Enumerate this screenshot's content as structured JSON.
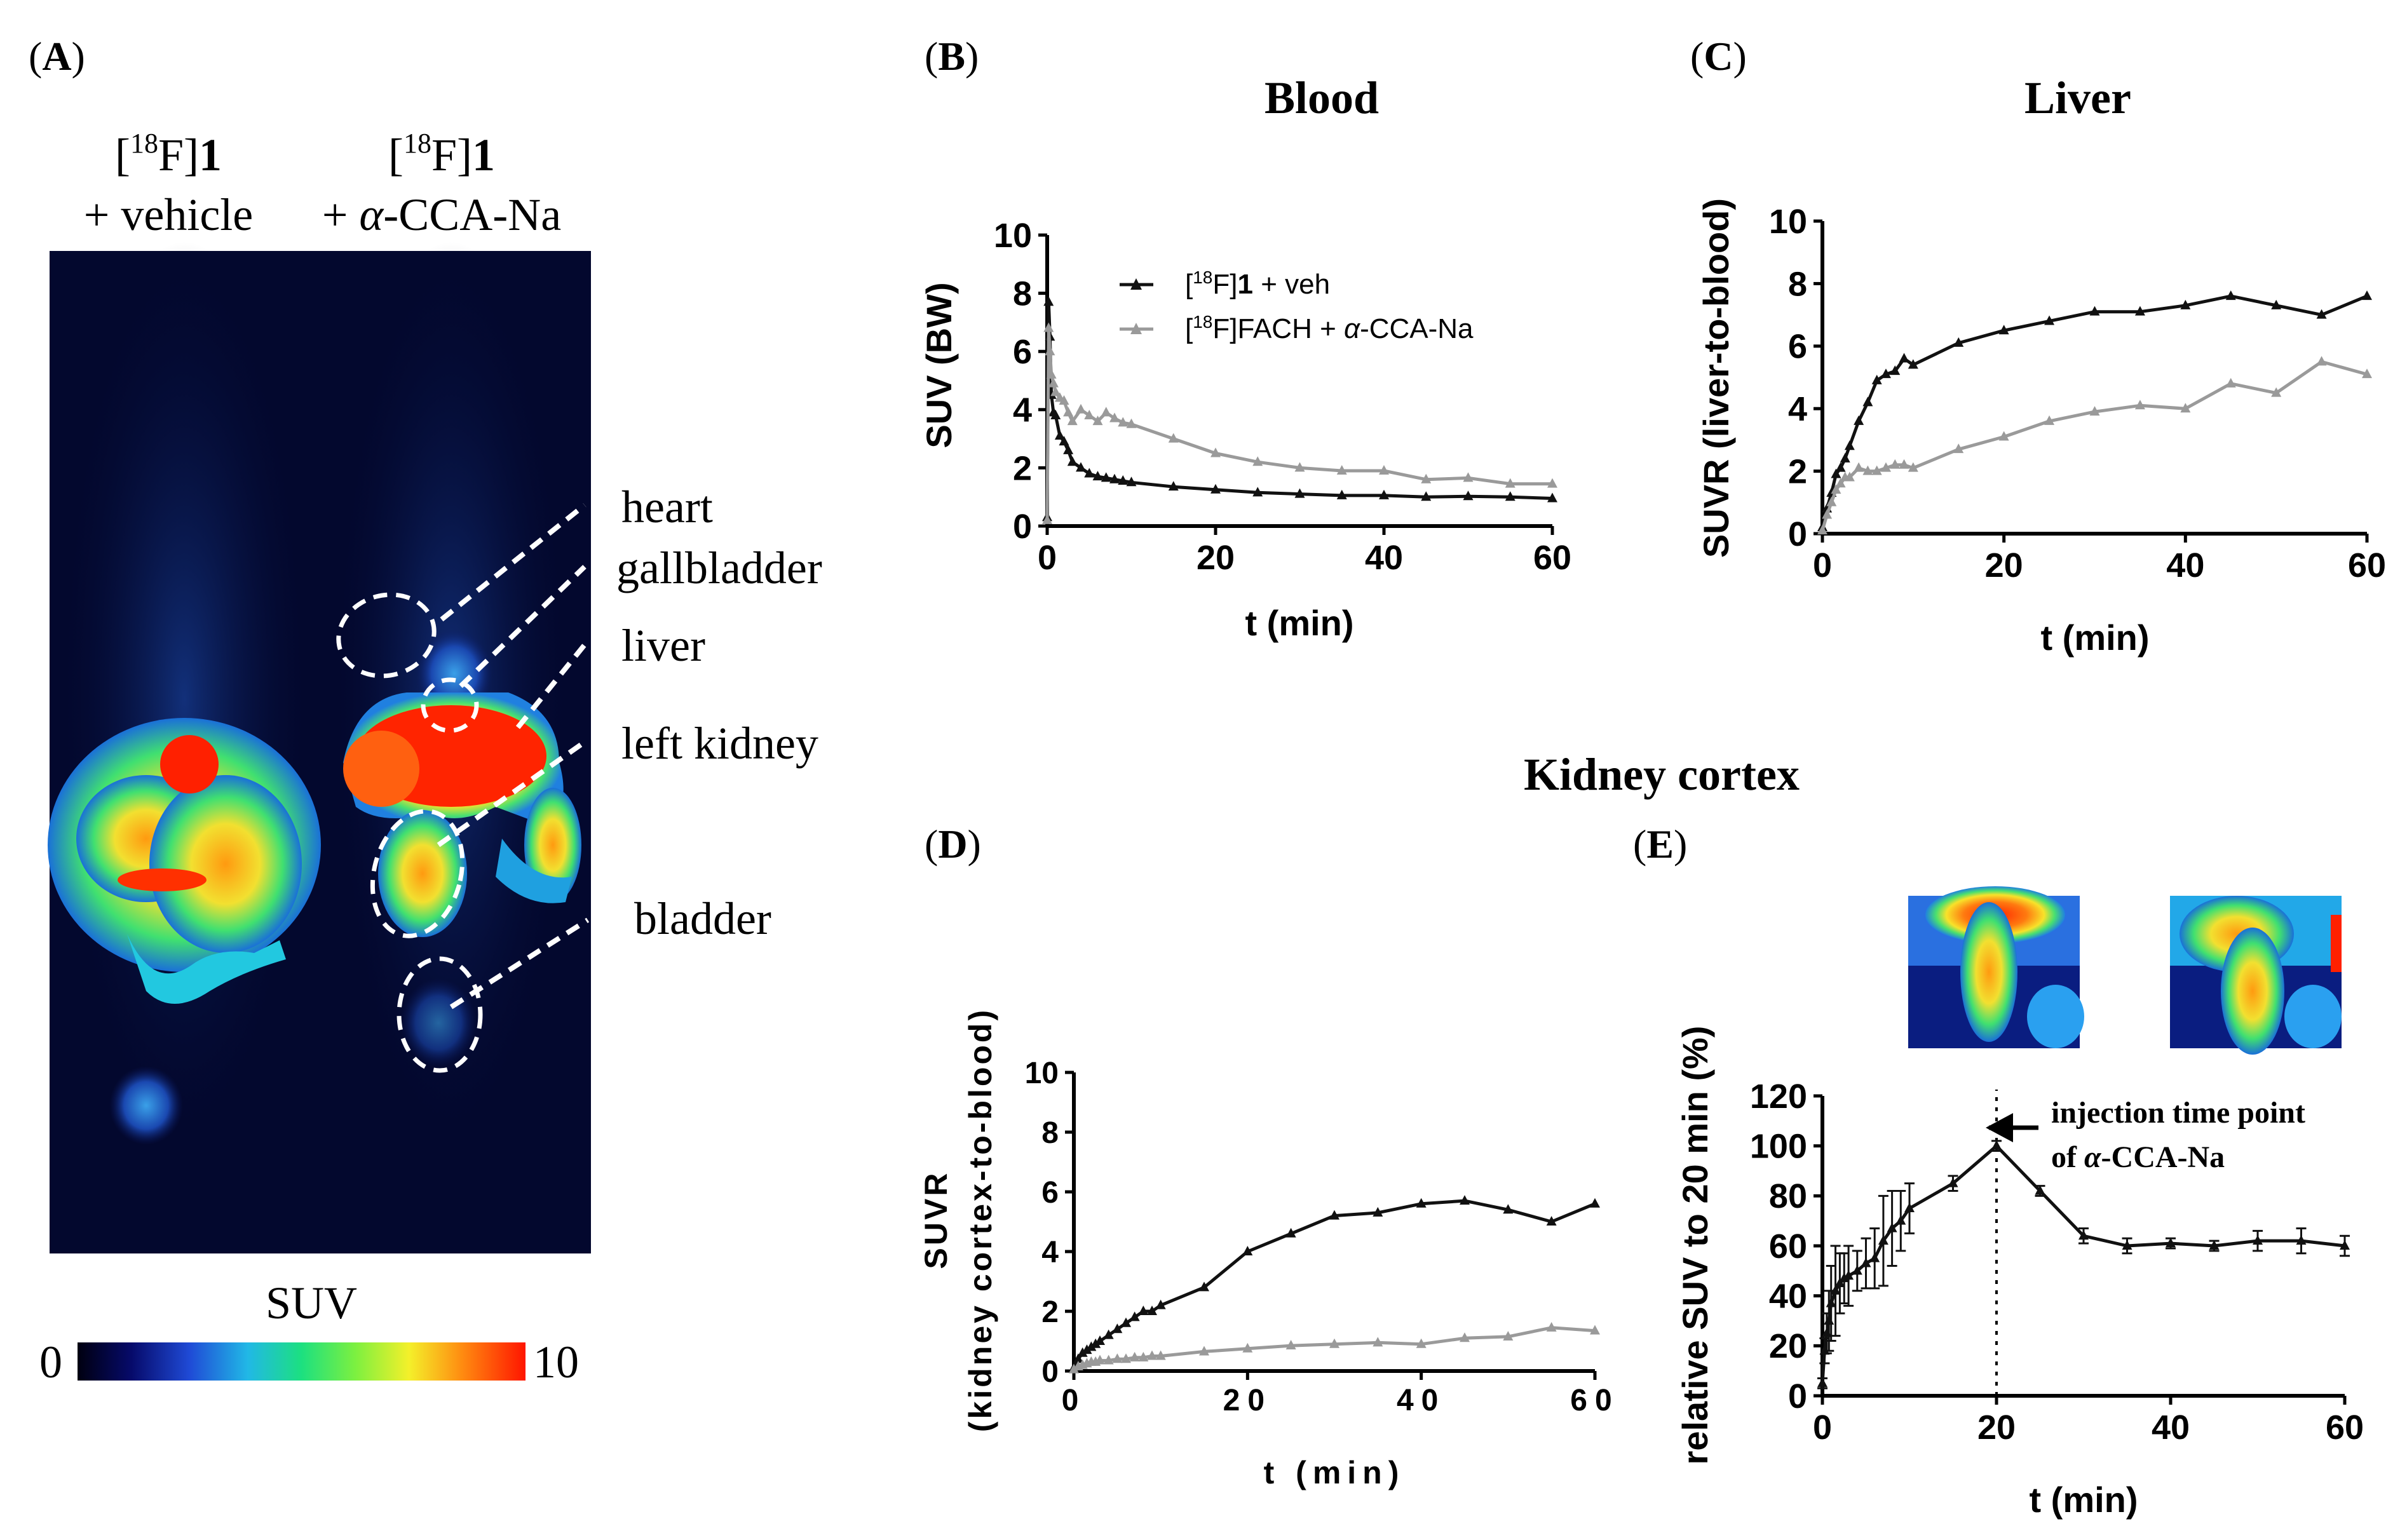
{
  "panels": {
    "A": {
      "letter": "A",
      "lbl_left_1a": "[",
      "lbl_left_1sup": "18",
      "lbl_left_1b": "F]",
      "lbl_left_1c": "1",
      "lbl_left_2": "+ vehicle",
      "lbl_right_1a": "[",
      "lbl_right_1sup": "18",
      "lbl_right_1b": "F]",
      "lbl_right_1c": "1",
      "lbl_right_2a": "+ ",
      "lbl_right_2b": "α",
      "lbl_right_2c": "-CCA-Na",
      "organs": [
        "heart",
        "gallbladder",
        "liver",
        "left kidney",
        "bladder"
      ],
      "colorbar": {
        "title": "SUV",
        "min_label": "0",
        "max_label": "10"
      }
    },
    "B": {
      "letter": "B",
      "title": "Blood"
    },
    "C": {
      "letter": "C",
      "title": "Liver"
    },
    "kidney_title": "Kidney cortex",
    "D": {
      "letter": "D"
    },
    "E": {
      "letter": "E",
      "annotation_line1": "injection time point",
      "annotation_line2a": "of ",
      "annotation_line2b": "α",
      "annotation_line2c": "-CCA-Na"
    }
  },
  "colors": {
    "black_series": "#111111",
    "gray_series": "#9a9a9a",
    "dark_bg": "#03082e"
  },
  "chart_data": [
    {
      "id": "B",
      "type": "line",
      "title": "Blood",
      "xlabel": "t (min)",
      "ylabel": "SUV (BW)",
      "xlim": [
        0,
        60
      ],
      "ylim": [
        0,
        10
      ],
      "xticks": [
        0,
        20,
        40,
        60
      ],
      "yticks": [
        0,
        2,
        4,
        6,
        8,
        10
      ],
      "legend": [
        {
          "t1": "[",
          "sup": "18",
          "t2": "F]",
          "bold": "1",
          "t3": " + veh"
        },
        {
          "t1": "[",
          "sup": "18",
          "t2": "F]FACH + ",
          "ital": "α",
          "t3": "-CCA-Na"
        }
      ],
      "series": [
        {
          "name": "[18F]1 + veh",
          "color": "#111111",
          "x": [
            0,
            0.17,
            0.33,
            0.5,
            0.75,
            1,
            1.5,
            2,
            2.5,
            3,
            4,
            5,
            6,
            7,
            8,
            9,
            10,
            15,
            20,
            25,
            30,
            35,
            40,
            45,
            50,
            55,
            60
          ],
          "y": [
            0.3,
            7.7,
            6.5,
            4.5,
            3.9,
            3.8,
            3.1,
            2.9,
            2.6,
            2.2,
            2.0,
            1.8,
            1.7,
            1.65,
            1.6,
            1.55,
            1.5,
            1.35,
            1.25,
            1.15,
            1.1,
            1.05,
            1.05,
            1.0,
            1.02,
            1.0,
            0.95
          ]
        },
        {
          "name": "[18F]FACH + α-CCA-Na",
          "color": "#9a9a9a",
          "x": [
            0,
            0.17,
            0.33,
            0.5,
            0.75,
            1,
            1.5,
            2,
            2.5,
            3,
            4,
            5,
            6,
            7,
            8,
            9,
            10,
            15,
            20,
            25,
            30,
            35,
            40,
            45,
            50,
            55,
            60
          ],
          "y": [
            0.2,
            6.8,
            6.0,
            5.2,
            4.9,
            4.6,
            4.4,
            4.3,
            3.9,
            3.6,
            4.0,
            3.8,
            3.6,
            3.9,
            3.7,
            3.55,
            3.5,
            3.0,
            2.5,
            2.2,
            2.0,
            1.9,
            1.9,
            1.6,
            1.65,
            1.45,
            1.45
          ]
        }
      ]
    },
    {
      "id": "C",
      "type": "line",
      "title": "Liver",
      "xlabel": "t (min)",
      "ylabel": "SUVR (liver-to-blood)",
      "xlim": [
        0,
        60
      ],
      "ylim": [
        0,
        10
      ],
      "xticks": [
        0,
        20,
        40,
        60
      ],
      "yticks": [
        0,
        2,
        4,
        6,
        8,
        10
      ],
      "series": [
        {
          "name": "[18F]1 + veh",
          "color": "#111111",
          "x": [
            0,
            0.5,
            1,
            1.5,
            2,
            2.5,
            3,
            4,
            5,
            6,
            7,
            8,
            9,
            10,
            15,
            20,
            25,
            30,
            35,
            40,
            45,
            50,
            55,
            60
          ],
          "y": [
            0.2,
            0.8,
            1.3,
            1.9,
            2.1,
            2.4,
            2.8,
            3.6,
            4.2,
            4.9,
            5.1,
            5.2,
            5.6,
            5.4,
            6.1,
            6.5,
            6.8,
            7.1,
            7.1,
            7.3,
            7.6,
            7.3,
            7.0,
            7.6
          ]
        },
        {
          "name": "[18F]FACH + α-CCA-Na",
          "color": "#9a9a9a",
          "x": [
            0,
            0.5,
            1,
            1.5,
            2,
            2.5,
            3,
            4,
            5,
            6,
            7,
            8,
            9,
            10,
            15,
            20,
            25,
            30,
            35,
            40,
            45,
            50,
            55,
            60
          ],
          "y": [
            0.1,
            0.6,
            1.0,
            1.4,
            1.6,
            1.8,
            1.8,
            2.1,
            2.0,
            2.0,
            2.1,
            2.2,
            2.2,
            2.1,
            2.7,
            3.1,
            3.6,
            3.9,
            4.1,
            4.0,
            4.8,
            4.5,
            5.5,
            5.1
          ]
        }
      ]
    },
    {
      "id": "D",
      "type": "line",
      "title": "Kidney cortex",
      "xlabel": "t (min)",
      "ylabel_line1": "SUVR",
      "ylabel_line2": "(kidney cortex-to-blood)",
      "xlim": [
        0,
        60
      ],
      "ylim": [
        0,
        10
      ],
      "xticks": [
        0,
        20,
        40,
        60
      ],
      "yticks": [
        0,
        2,
        4,
        6,
        8,
        10
      ],
      "series": [
        {
          "name": "[18F]1 + veh",
          "color": "#111111",
          "x": [
            0,
            0.5,
            1,
            1.5,
            2,
            2.5,
            3,
            4,
            5,
            6,
            7,
            8,
            9,
            10,
            15,
            20,
            25,
            30,
            35,
            40,
            45,
            50,
            55,
            60
          ],
          "y": [
            0.1,
            0.4,
            0.6,
            0.7,
            0.8,
            0.9,
            1.0,
            1.2,
            1.4,
            1.6,
            1.8,
            2.0,
            2.0,
            2.2,
            2.8,
            4.0,
            4.6,
            5.2,
            5.3,
            5.6,
            5.7,
            5.4,
            5.0,
            5.6
          ]
        },
        {
          "name": "[18F]FACH + α-CCA-Na",
          "color": "#9a9a9a",
          "x": [
            0,
            0.5,
            1,
            1.5,
            2,
            2.5,
            3,
            4,
            5,
            6,
            7,
            8,
            9,
            10,
            15,
            20,
            25,
            30,
            35,
            40,
            45,
            50,
            55,
            60
          ],
          "y": [
            0.05,
            0.15,
            0.2,
            0.25,
            0.3,
            0.3,
            0.35,
            0.35,
            0.4,
            0.4,
            0.45,
            0.45,
            0.5,
            0.5,
            0.65,
            0.75,
            0.85,
            0.9,
            0.95,
            0.9,
            1.1,
            1.15,
            1.45,
            1.35
          ]
        }
      ]
    },
    {
      "id": "E",
      "type": "line",
      "title": "Kidney cortex",
      "xlabel": "t (min)",
      "ylabel": "relative SUV to 20 min (%)",
      "xlim": [
        0,
        60
      ],
      "ylim": [
        0,
        120
      ],
      "xticks": [
        0,
        20,
        40,
        60
      ],
      "yticks": [
        0,
        20,
        40,
        60,
        80,
        100,
        120
      ],
      "injection_time": 20,
      "series": [
        {
          "name": "[18F]FACH + α-CCA-Na (injection at 20 min)",
          "color": "#111111",
          "x": [
            0,
            0.25,
            0.5,
            0.75,
            1,
            1.5,
            2,
            2.5,
            3,
            4,
            5,
            6,
            7,
            8,
            9,
            10,
            15,
            20,
            25,
            30,
            35,
            40,
            45,
            50,
            55,
            60
          ],
          "y": [
            5,
            18,
            25,
            30,
            37,
            42,
            45,
            47,
            48,
            50,
            53,
            55,
            62,
            67,
            70,
            75,
            85,
            100,
            82,
            64,
            60,
            61,
            60,
            62,
            62,
            60
          ],
          "err": [
            2,
            5,
            8,
            12,
            15,
            18,
            12,
            10,
            12,
            8,
            10,
            12,
            18,
            15,
            12,
            10,
            3,
            2,
            2,
            3,
            3,
            2,
            2,
            4,
            5,
            4
          ]
        }
      ]
    }
  ]
}
